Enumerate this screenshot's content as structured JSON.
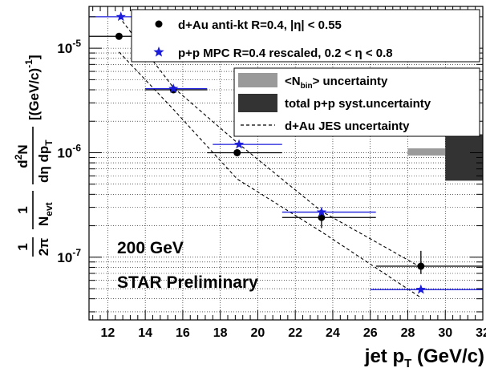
{
  "chart_data": {
    "type": "scatter",
    "xlim": [
      11,
      32
    ],
    "ylim_log10": [
      -7.6,
      -4.6
    ],
    "log_y": true,
    "grid": true,
    "x_ticks": [
      12,
      14,
      16,
      18,
      20,
      22,
      24,
      26,
      28,
      30,
      32
    ],
    "x_tick_labels": [
      "12",
      "14",
      "16",
      "18",
      "20",
      "22",
      "24",
      "26",
      "28",
      "30",
      "32"
    ],
    "y_ticks": [
      {
        "value": 1e-07,
        "base": "10",
        "exp": "-7"
      },
      {
        "value": 1e-06,
        "base": "10",
        "exp": "-6"
      },
      {
        "value": 1e-05,
        "base": "10",
        "exp": "-5"
      }
    ],
    "xlabel": {
      "main": "jet p",
      "sub": "T",
      "rest": " (GeV/c)"
    },
    "annotations": [
      "200 GeV",
      "STAR Preliminary"
    ],
    "series": [
      {
        "name": "d+Au anti-kt R=0.4, |η| < 0.55",
        "marker": "circle",
        "color": "#000000",
        "x": [
          12.6,
          15.5,
          18.9,
          23.4,
          28.7
        ],
        "xerr_low": [
          11.0,
          14.0,
          17.3,
          21.3,
          26.3
        ],
        "xerr_high": [
          14.0,
          17.3,
          21.3,
          26.3,
          32.0
        ],
        "y": [
          1.3e-05,
          4e-06,
          1e-06,
          2.4e-07,
          8.2e-08
        ],
        "yerr_low": [
          1.22e-05,
          3.8e-06,
          9.4e-07,
          1.9e-07,
          6.9e-08
        ],
        "yerr_high": [
          1.38e-05,
          4.25e-06,
          1.07e-06,
          3e-07,
          1.15e-07
        ]
      },
      {
        "name": "p+p MPC R=0.4 rescaled, 0.2 < η < 0.8",
        "marker": "star",
        "color": "#1c1cdb",
        "x": [
          12.7,
          15.5,
          19.0,
          23.4,
          28.7
        ],
        "xerr_low": [
          11.0,
          14.0,
          17.6,
          21.3,
          26.0
        ],
        "xerr_high": [
          14.0,
          17.3,
          21.3,
          26.3,
          32.0
        ],
        "y": [
          2e-05,
          4.1e-06,
          1.2e-06,
          2.7e-07,
          4.9e-08
        ]
      }
    ],
    "jes_band": {
      "name": "d+Au JES uncertainty",
      "upper": {
        "x": [
          12.6,
          15.5,
          18.9,
          23.4,
          28.7
        ],
        "y": [
          2e-05,
          4.2e-06,
          1.25e-06,
          2.75e-07,
          8e-08
        ]
      },
      "lower": {
        "x": [
          12.6,
          15.5,
          18.9,
          23.4,
          28.7
        ],
        "y": [
          9.2e-06,
          2.6e-06,
          5.6e-07,
          1.75e-07,
          4.1e-08
        ]
      }
    },
    "nbin_box": {
      "name": "<N_bin> uncertainty",
      "x": [
        28.0,
        30.1
      ],
      "y": [
        9.4e-07,
        1.1e-06
      ],
      "color": "#9a9a9a"
    },
    "total_box": {
      "name": "total p+p syst.uncertainty",
      "x": [
        30.0,
        32.0
      ],
      "y": [
        5.4e-07,
        1.5e-06
      ],
      "color": "#333333"
    },
    "legend_placement": "top-right",
    "legend_labels": [
      "d+Au anti-kt R=0.4, |η| < 0.55",
      "p+p MPC R=0.4 rescaled, 0.2 < η < 0.8",
      "<N",
      "bin",
      "> uncertainty",
      "total p+p syst.uncertainty",
      "d+Au JES uncertainty"
    ],
    "ylabel_parts": [
      "1",
      "2π",
      "1",
      "N",
      "evt",
      "d",
      "2",
      "N",
      "dη dp",
      "T",
      "[(GeV/c)",
      "-1",
      "]"
    ]
  }
}
